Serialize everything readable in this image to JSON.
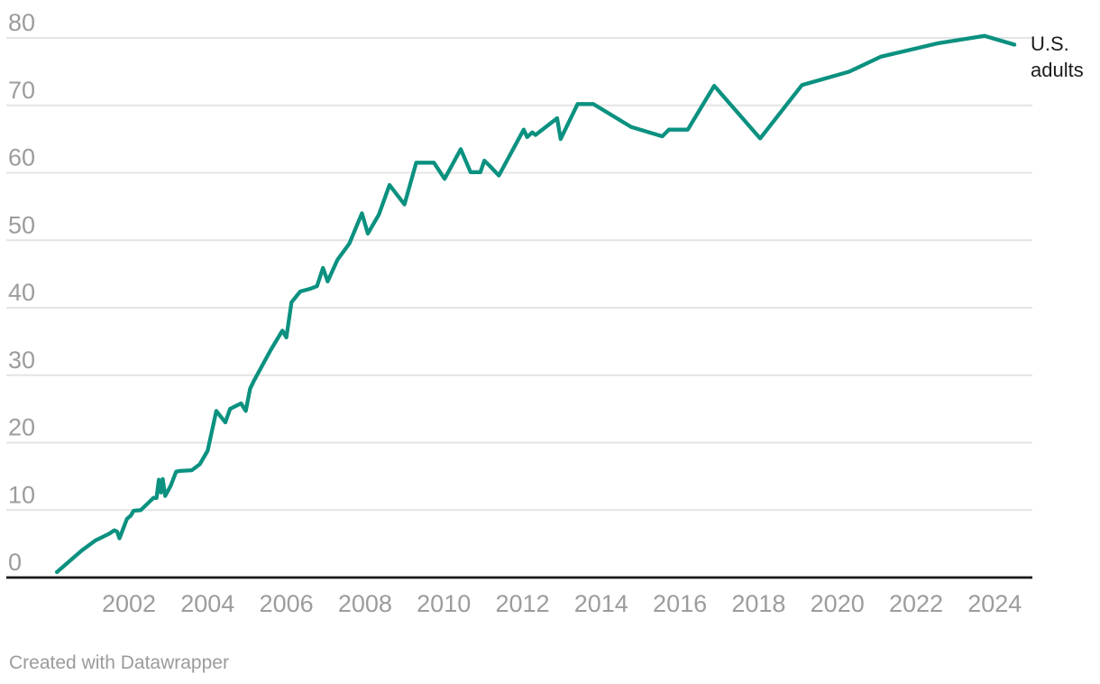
{
  "labels": {
    "series_end_label": "U.S. adults"
  },
  "attribution": {
    "text": "Created with Datawrapper"
  },
  "colors": {
    "line": "#0b9180",
    "gridline": "#e4e4e4",
    "axis": "#1a1a1a",
    "tick_label": "#9c9c9c",
    "annotation_text": "#1b1b1b",
    "attribution_text": "#9b9b9b",
    "background": "#ffffff"
  },
  "chart_data": {
    "type": "line",
    "title": "",
    "xlabel": "",
    "ylabel": "",
    "grid": true,
    "legend_position": "end-of-line",
    "x_range": [
      2000.0,
      2024.95
    ],
    "y_range": [
      0,
      80
    ],
    "x_ticks": [
      2002,
      2004,
      2006,
      2008,
      2010,
      2012,
      2014,
      2016,
      2018,
      2020,
      2022,
      2024
    ],
    "y_ticks": [
      0,
      10,
      20,
      30,
      40,
      50,
      60,
      70,
      80
    ],
    "line_color": "#0b9180",
    "series": [
      {
        "name": "U.S. adults",
        "points": [
          [
            2000.17,
            0.8
          ],
          [
            2000.8,
            4
          ],
          [
            2001.15,
            5.5
          ],
          [
            2001.5,
            6.5
          ],
          [
            2001.63,
            7
          ],
          [
            2001.7,
            6.8
          ],
          [
            2001.76,
            5.8
          ],
          [
            2001.95,
            8.7
          ],
          [
            2002.05,
            9.2
          ],
          [
            2002.12,
            9.9
          ],
          [
            2002.3,
            10
          ],
          [
            2002.5,
            11.1
          ],
          [
            2002.62,
            11.8
          ],
          [
            2002.7,
            11.8
          ],
          [
            2002.76,
            14.5
          ],
          [
            2002.81,
            12.6
          ],
          [
            2002.86,
            14.6
          ],
          [
            2002.92,
            12.1
          ],
          [
            2003.06,
            13.6
          ],
          [
            2003.2,
            15.7
          ],
          [
            2003.3,
            15.8
          ],
          [
            2003.6,
            15.9
          ],
          [
            2003.8,
            16.8
          ],
          [
            2004.0,
            18.8
          ],
          [
            2004.22,
            24.7
          ],
          [
            2004.45,
            23.0
          ],
          [
            2004.57,
            25.0
          ],
          [
            2004.85,
            25.8
          ],
          [
            2004.97,
            24.7
          ],
          [
            2005.08,
            28.0
          ],
          [
            2005.18,
            29.2
          ],
          [
            2005.6,
            33.7
          ],
          [
            2005.9,
            36.6
          ],
          [
            2006.0,
            35.6
          ],
          [
            2006.13,
            40.8
          ],
          [
            2006.35,
            42.4
          ],
          [
            2006.6,
            42.8
          ],
          [
            2006.78,
            43.2
          ],
          [
            2006.93,
            45.9
          ],
          [
            2007.05,
            43.9
          ],
          [
            2007.3,
            47.1
          ],
          [
            2007.6,
            49.5
          ],
          [
            2007.92,
            54.0
          ],
          [
            2008.07,
            51.0
          ],
          [
            2008.35,
            53.8
          ],
          [
            2008.62,
            58.2
          ],
          [
            2009.0,
            55.3
          ],
          [
            2009.3,
            61.5
          ],
          [
            2009.75,
            61.5
          ],
          [
            2010.02,
            59.1
          ],
          [
            2010.43,
            63.5
          ],
          [
            2010.68,
            60.1
          ],
          [
            2010.93,
            60.1
          ],
          [
            2011.03,
            61.8
          ],
          [
            2011.17,
            61.0
          ],
          [
            2011.4,
            59.6
          ],
          [
            2012.03,
            66.4
          ],
          [
            2012.12,
            65.3
          ],
          [
            2012.25,
            66.0
          ],
          [
            2012.33,
            65.6
          ],
          [
            2012.88,
            68.1
          ],
          [
            2012.97,
            65.0
          ],
          [
            2013.4,
            70.2
          ],
          [
            2013.8,
            70.2
          ],
          [
            2014.76,
            66.8
          ],
          [
            2015.55,
            65.4
          ],
          [
            2015.72,
            66.4
          ],
          [
            2016.2,
            66.4
          ],
          [
            2016.87,
            72.9
          ],
          [
            2018.04,
            65.1
          ],
          [
            2019.1,
            73.0
          ],
          [
            2020.3,
            75.0
          ],
          [
            2021.1,
            77.2
          ],
          [
            2022.55,
            79.2
          ],
          [
            2023.74,
            80.3
          ],
          [
            2024.5,
            79.0
          ]
        ]
      }
    ]
  }
}
